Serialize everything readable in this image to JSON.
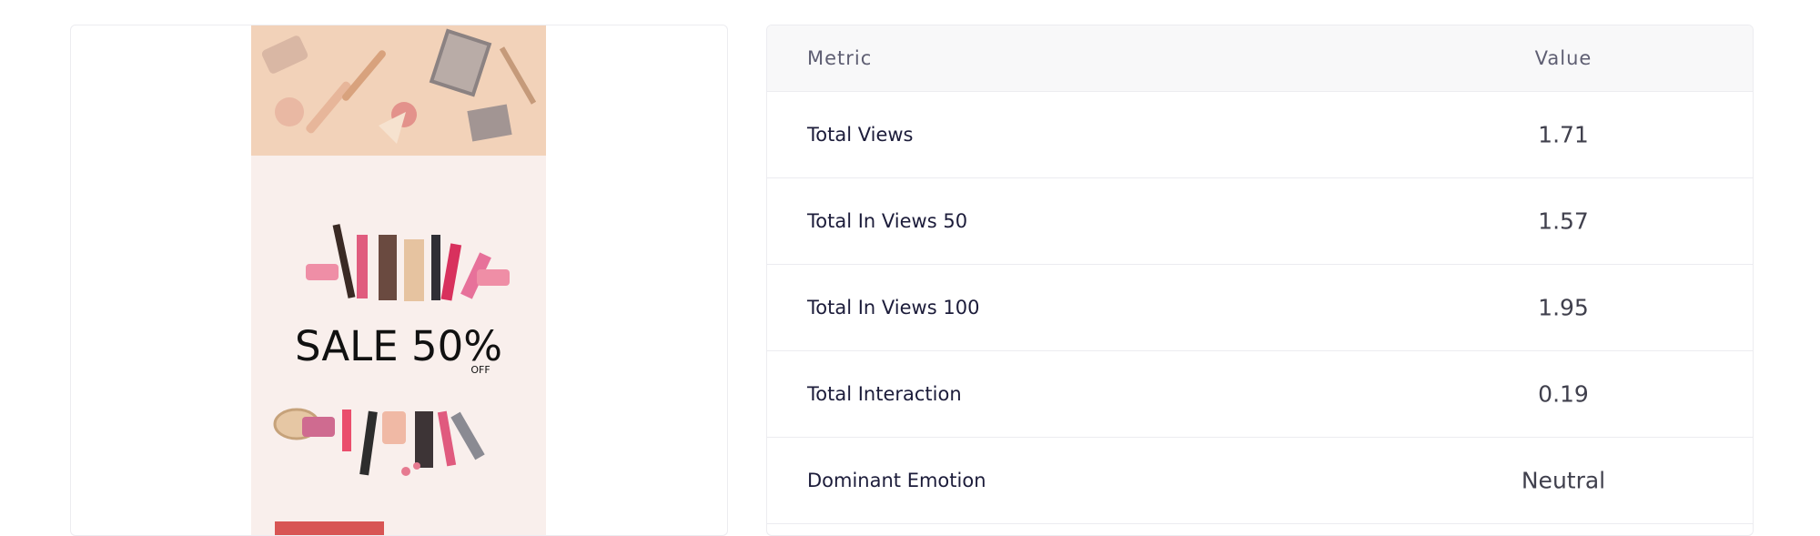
{
  "ad_preview": {
    "banner_text": "SALE 50%",
    "banner_subtext": "OFF"
  },
  "table": {
    "headers": [
      "Metric",
      "Value"
    ],
    "rows": [
      [
        "Total Views",
        1.71
      ],
      [
        "Total In Views 50",
        1.57
      ],
      [
        "Total In Views 100",
        1.95
      ],
      [
        "Total Interaction",
        0.19
      ],
      [
        "Dominant Emotion",
        "Neutral"
      ]
    ]
  }
}
